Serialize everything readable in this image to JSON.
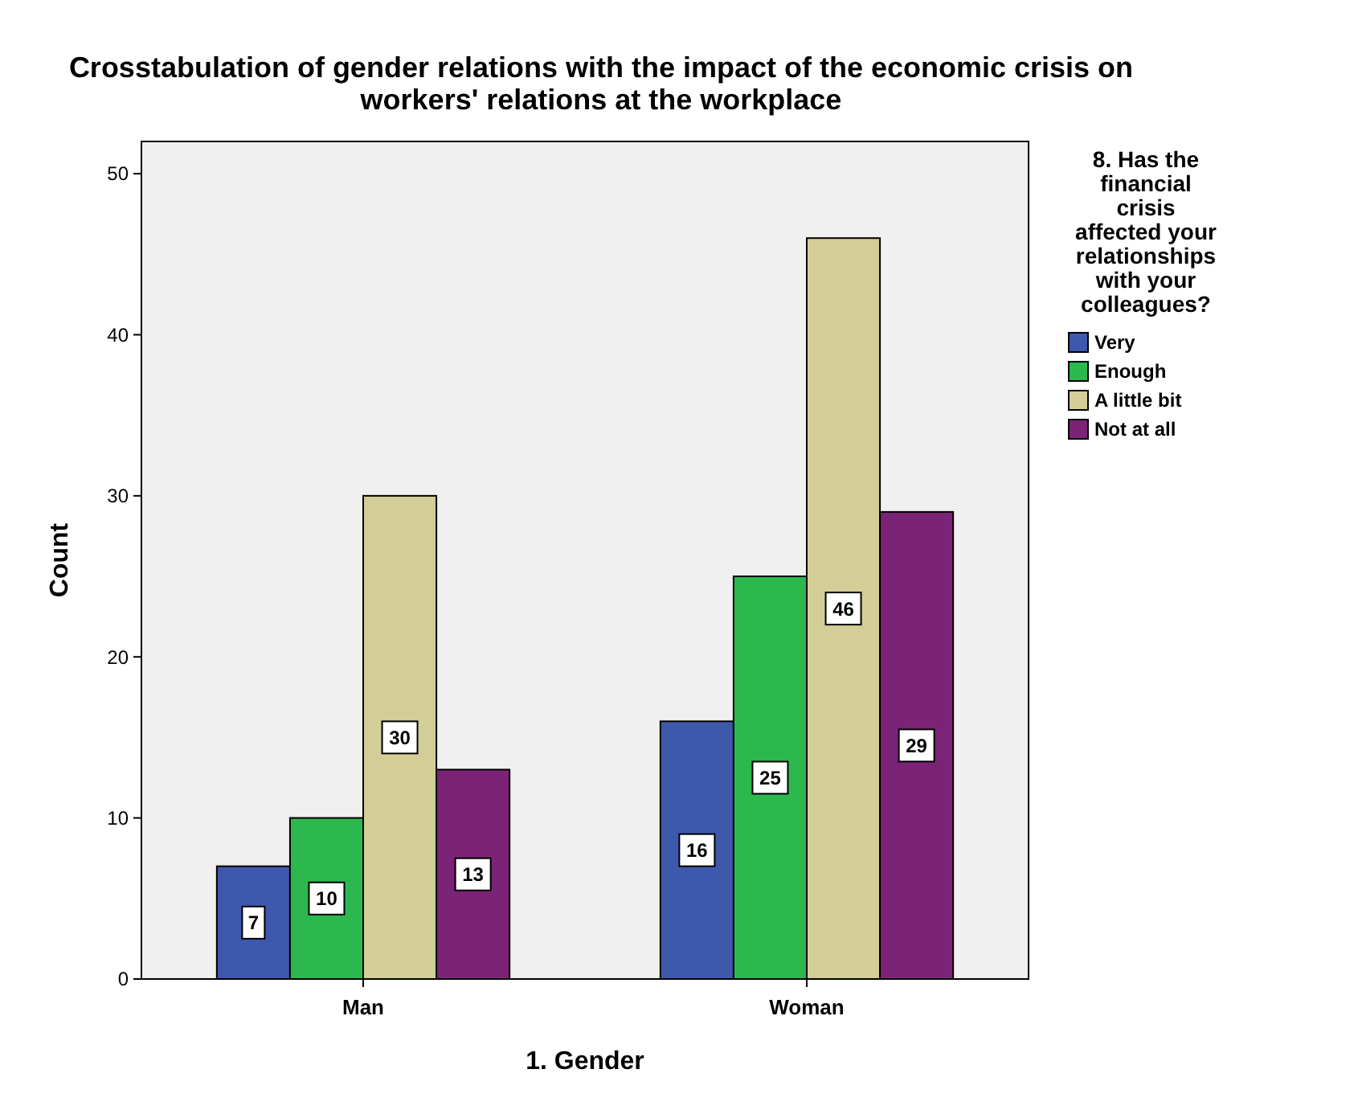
{
  "chart_data": {
    "type": "bar",
    "title": "Crosstabulation of gender relations with the impact of the economic crisis on workers' relations at the workplace",
    "xlabel": "1. Gender",
    "ylabel": "Count",
    "legend_title": "8. Has the financial crisis affected your relationships with your colleagues?",
    "categories": [
      "Man",
      "Woman"
    ],
    "series": [
      {
        "name": "Very",
        "color": "#3e58ac",
        "values": [
          7,
          16
        ]
      },
      {
        "name": "Enough",
        "color": "#2db84d",
        "values": [
          10,
          25
        ]
      },
      {
        "name": "A little bit",
        "color": "#d3ce97",
        "values": [
          30,
          46
        ]
      },
      {
        "name": "Not at all",
        "color": "#7b2376",
        "values": [
          13,
          29
        ]
      }
    ],
    "ylim": [
      0,
      52
    ],
    "yticks": [
      0,
      10,
      20,
      30,
      40,
      50
    ],
    "data_labels": true,
    "legend": "right",
    "grid": false
  }
}
